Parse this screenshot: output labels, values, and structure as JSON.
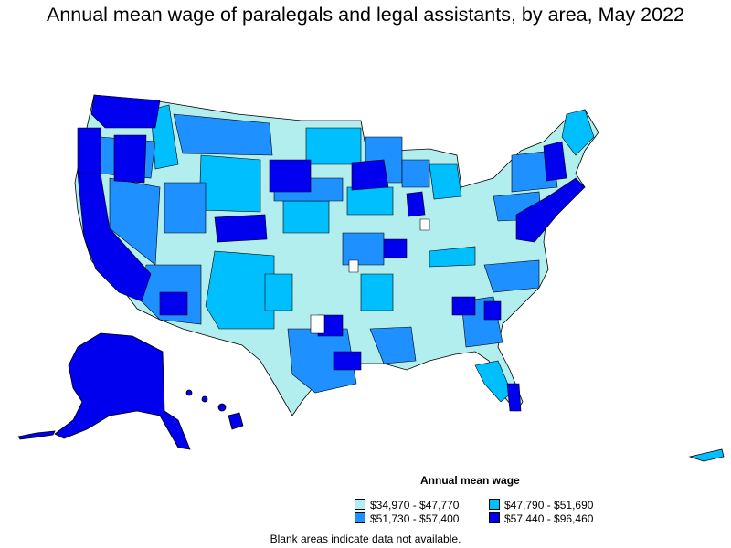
{
  "title": "Annual mean wage of paralegals and legal assistants, by area, May 2022",
  "legend": {
    "title": "Annual mean wage",
    "items": [
      {
        "label": "$34,970 - $47,770",
        "color": "#b3eeee"
      },
      {
        "label": "$47,790 - $51,690",
        "color": "#00bfff"
      },
      {
        "label": "$51,730 - $57,400",
        "color": "#1e90ff"
      },
      {
        "label": "$57,440 - $96,460",
        "color": "#0000ee"
      }
    ]
  },
  "footnote": "Blank areas indicate data not available.",
  "colors": {
    "tier1": "#b3eeee",
    "tier2": "#00bfff",
    "tier3": "#1e90ff",
    "tier4": "#0000ee",
    "border": "#000000",
    "nodata": "#ffffff"
  }
}
